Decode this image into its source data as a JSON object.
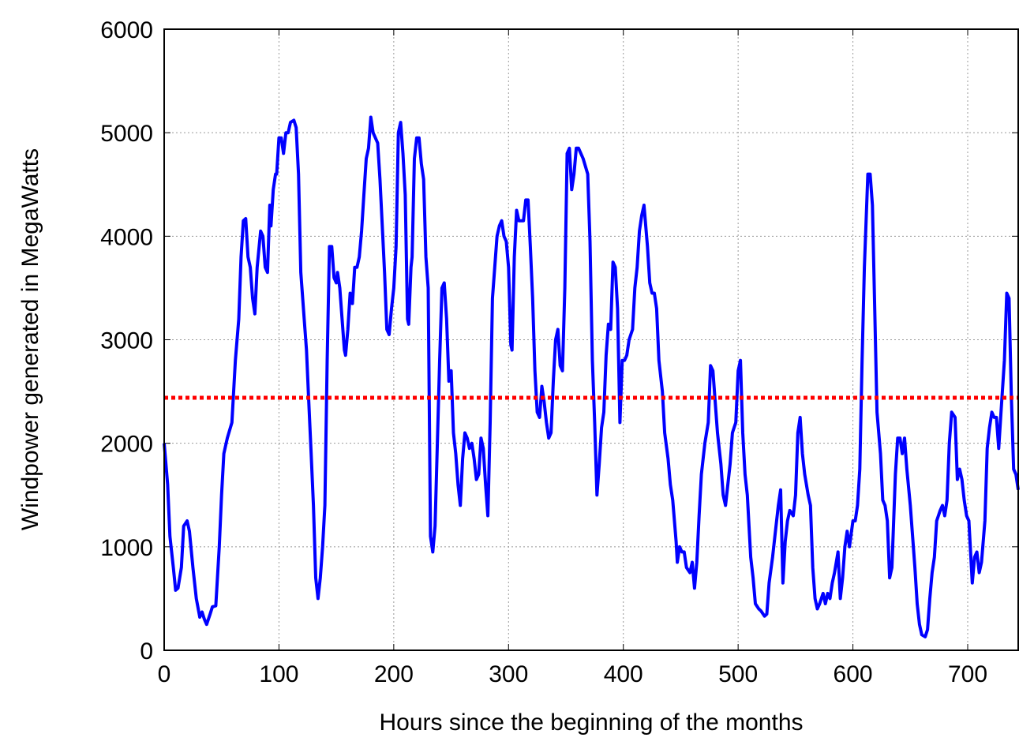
{
  "chart_data": {
    "type": "line",
    "x_label": "Hours since the beginning of the months",
    "y_label": "Windpower generated in MegaWatts",
    "xlim": [
      0,
      744
    ],
    "ylim": [
      0,
      6000
    ],
    "xticks": [
      0,
      100,
      200,
      300,
      400,
      500,
      600,
      700
    ],
    "yticks": [
      0,
      1000,
      2000,
      3000,
      4000,
      5000,
      6000
    ],
    "grid": true,
    "reference_line": {
      "value": 2440,
      "color": "#ff0000"
    },
    "series": [
      {
        "color": "#0000ff",
        "x": [
          0,
          3,
          5,
          8,
          10,
          12,
          15,
          17,
          20,
          22,
          25,
          28,
          31,
          33,
          35,
          37,
          40,
          42,
          45,
          48,
          50,
          52,
          55,
          59,
          62,
          65,
          67,
          69,
          71,
          73,
          75,
          77,
          79,
          81,
          84,
          86,
          88,
          90,
          92,
          93,
          95,
          97,
          98,
          100,
          102,
          104,
          106,
          108,
          110,
          113,
          115,
          117,
          119,
          122,
          124,
          126,
          128,
          130,
          132,
          134,
          136,
          138,
          140,
          142,
          144,
          146,
          148,
          150,
          151,
          153,
          155,
          157,
          158,
          160,
          162,
          164,
          166,
          168,
          170,
          172,
          174,
          176,
          178,
          180,
          182,
          184,
          186,
          188,
          190,
          192,
          194,
          196,
          198,
          200,
          202,
          204,
          206,
          208,
          210,
          212,
          213,
          215,
          216,
          218,
          220,
          222,
          224,
          226,
          228,
          230,
          232,
          234,
          236,
          238,
          240,
          242,
          244,
          246,
          248,
          250,
          252,
          254,
          256,
          258,
          260,
          262,
          264,
          266,
          268,
          270,
          272,
          274,
          276,
          278,
          280,
          282,
          284,
          286,
          288,
          290,
          292,
          294,
          296,
          298,
          300,
          302,
          303,
          305,
          307,
          309,
          311,
          313,
          315,
          317,
          319,
          321,
          323,
          325,
          327,
          329,
          331,
          333,
          335,
          337,
          339,
          341,
          343,
          345,
          347,
          349,
          351,
          353,
          355,
          357,
          359,
          361,
          363,
          365,
          369,
          371,
          373,
          375,
          377,
          379,
          381,
          383,
          385,
          387,
          389,
          391,
          393,
          395,
          397,
          399,
          401,
          403,
          405,
          408,
          410,
          412,
          414,
          416,
          418,
          421,
          423,
          425,
          427,
          429,
          431,
          434,
          436,
          439,
          441,
          443,
          446,
          447,
          449,
          451,
          453,
          455,
          458,
          460,
          462,
          464,
          466,
          468,
          471,
          474,
          476,
          478,
          480,
          482,
          485,
          487,
          489,
          491,
          493,
          495,
          498,
          500,
          502,
          504,
          506,
          508,
          511,
          513,
          515,
          518,
          520,
          523,
          525,
          527,
          530,
          532,
          535,
          537,
          539,
          541,
          543,
          545,
          548,
          550,
          552,
          554,
          556,
          558,
          561,
          563,
          565,
          567,
          569,
          571,
          574,
          576,
          578,
          580,
          582,
          584,
          587,
          589,
          591,
          593,
          595,
          597,
          600,
          602,
          604,
          606,
          608,
          610,
          613,
          615,
          617,
          619,
          621,
          624,
          626,
          628,
          630,
          632,
          634,
          637,
          639,
          641,
          643,
          645,
          647,
          650,
          652,
          654,
          656,
          658,
          660,
          663,
          665,
          667,
          669,
          671,
          673,
          676,
          678,
          680,
          682,
          684,
          686,
          689,
          691,
          693,
          695,
          697,
          699,
          701,
          704,
          706,
          708,
          710,
          712,
          715,
          717,
          719,
          721,
          723,
          725,
          727,
          729,
          732,
          734,
          736,
          738,
          740,
          742,
          744
        ],
        "values": [
          2000,
          1600,
          1100,
          800,
          580,
          600,
          800,
          1200,
          1250,
          1150,
          800,
          500,
          320,
          370,
          300,
          250,
          350,
          420,
          430,
          1000,
          1500,
          1900,
          2050,
          2200,
          2800,
          3200,
          3800,
          4150,
          4170,
          3800,
          3700,
          3400,
          3250,
          3700,
          4050,
          4000,
          3700,
          3650,
          4300,
          4100,
          4450,
          4600,
          4600,
          4950,
          4950,
          4800,
          5000,
          5000,
          5100,
          5120,
          5050,
          4600,
          3650,
          3200,
          2900,
          2400,
          1900,
          1400,
          700,
          500,
          700,
          1000,
          1400,
          2800,
          3900,
          3900,
          3600,
          3550,
          3650,
          3500,
          3200,
          2900,
          2850,
          3100,
          3450,
          3350,
          3700,
          3700,
          3800,
          4050,
          4400,
          4750,
          4850,
          5150,
          5000,
          4950,
          4900,
          4550,
          4100,
          3650,
          3100,
          3050,
          3300,
          3500,
          3900,
          5000,
          5100,
          4800,
          4400,
          3200,
          3150,
          3700,
          3800,
          4750,
          4950,
          4950,
          4700,
          4550,
          3800,
          3500,
          1100,
          950,
          1200,
          2000,
          2800,
          3500,
          3550,
          3200,
          2600,
          2700,
          2100,
          1900,
          1600,
          1400,
          1850,
          2100,
          2050,
          1950,
          2000,
          1850,
          1650,
          1700,
          2050,
          1950,
          1600,
          1300,
          2200,
          3400,
          3700,
          4000,
          4100,
          4150,
          4000,
          3950,
          3700,
          2950,
          2900,
          3800,
          4250,
          4150,
          4150,
          4150,
          4350,
          4350,
          3900,
          3400,
          2700,
          2300,
          2250,
          2550,
          2400,
          2200,
          2050,
          2100,
          2600,
          3000,
          3100,
          2750,
          2700,
          3500,
          4800,
          4850,
          4450,
          4600,
          4850,
          4850,
          4800,
          4750,
          4600,
          3950,
          2800,
          2200,
          1500,
          1800,
          2150,
          2300,
          2850,
          3150,
          3100,
          3750,
          3700,
          3300,
          2200,
          2800,
          2800,
          2850,
          3000,
          3100,
          3500,
          3700,
          4050,
          4200,
          4300,
          3900,
          3550,
          3450,
          3450,
          3300,
          2800,
          2500,
          2100,
          1850,
          1600,
          1450,
          1050,
          850,
          1000,
          950,
          950,
          800,
          750,
          850,
          600,
          850,
          1300,
          1700,
          2000,
          2200,
          2750,
          2700,
          2400,
          2100,
          1800,
          1500,
          1400,
          1600,
          1800,
          2100,
          2200,
          2700,
          2800,
          2100,
          1700,
          1500,
          900,
          700,
          450,
          400,
          380,
          330,
          350,
          650,
          900,
          1100,
          1400,
          1550,
          650,
          1050,
          1250,
          1350,
          1300,
          1500,
          2100,
          2250,
          1900,
          1700,
          1500,
          1400,
          800,
          500,
          400,
          450,
          550,
          450,
          550,
          500,
          650,
          750,
          950,
          500,
          700,
          1000,
          1150,
          1000,
          1250,
          1250,
          1400,
          1750,
          2800,
          3700,
          4600,
          4600,
          4300,
          3300,
          2300,
          1900,
          1450,
          1400,
          1250,
          700,
          800,
          1700,
          2050,
          2050,
          1900,
          2050,
          1750,
          1400,
          1100,
          800,
          450,
          250,
          150,
          130,
          200,
          500,
          750,
          900,
          1250,
          1350,
          1400,
          1300,
          1450,
          2000,
          2300,
          2250,
          1650,
          1750,
          1650,
          1450,
          1300,
          1250,
          650,
          900,
          950,
          750,
          850,
          1250,
          1950,
          2150,
          2300,
          2250,
          2250,
          1950,
          2300,
          2800,
          3450,
          3400,
          2450,
          1750,
          1700,
          1550
        ]
      }
    ]
  }
}
